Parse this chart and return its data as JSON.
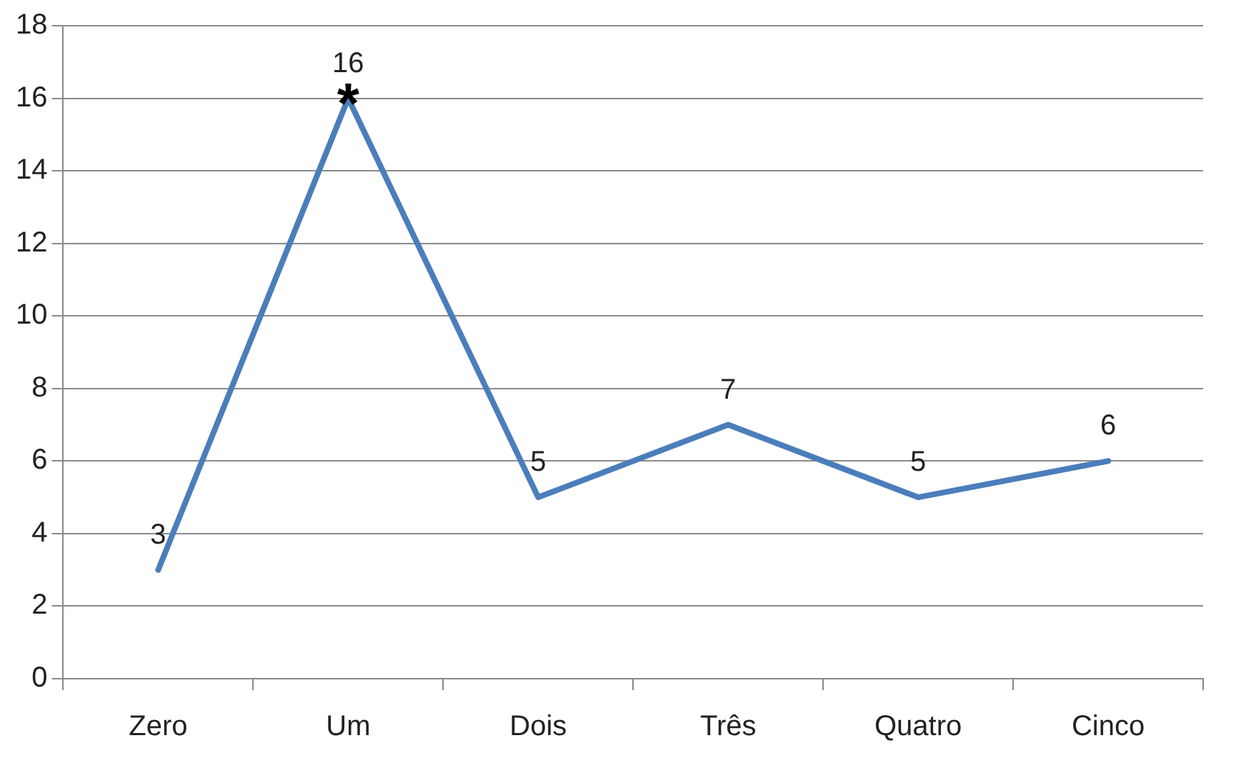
{
  "chart_data": {
    "type": "line",
    "categories": [
      "Zero",
      "Um",
      "Dois",
      "Três",
      "Quatro",
      "Cinco"
    ],
    "series": [
      {
        "color": "#4a7ebb",
        "values": [
          3,
          16,
          5,
          7,
          5,
          6
        ]
      }
    ],
    "ylim": [
      0,
      18
    ],
    "yticks": [
      0,
      2,
      4,
      6,
      8,
      10,
      12,
      14,
      16,
      18
    ],
    "grid": "y",
    "legend": false,
    "marker": "none",
    "line_style": "solid",
    "data_labels": true,
    "annotations": [
      {
        "text": "*",
        "x": "Um",
        "y": 16
      }
    ]
  }
}
